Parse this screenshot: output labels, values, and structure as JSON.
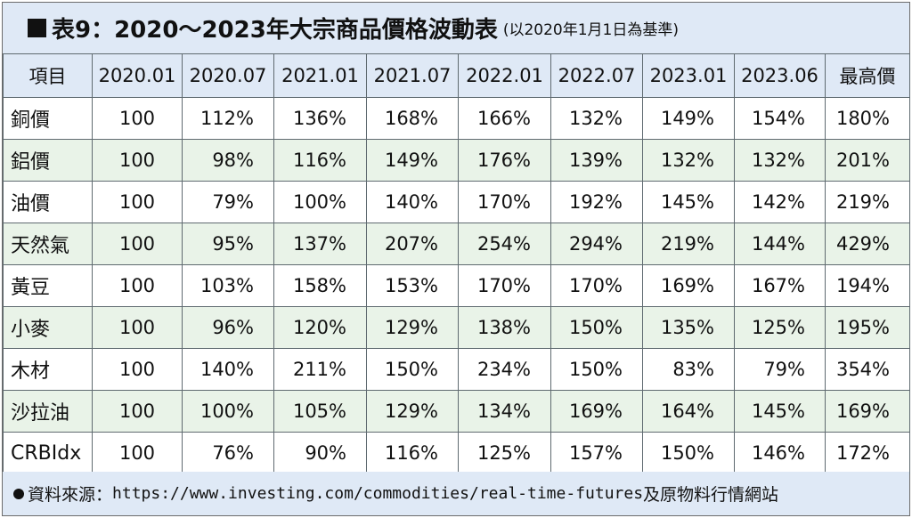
{
  "title": {
    "main": "表9：2020～2023年大宗商品價格波動表",
    "sub": "(以2020年1月1日為基準)"
  },
  "table": {
    "headers": [
      "項目",
      "2020.01",
      "2020.07",
      "2021.01",
      "2021.07",
      "2022.01",
      "2022.07",
      "2023.01",
      "2023.06",
      "最高價"
    ],
    "rows": [
      {
        "label": "銅價",
        "values": [
          "100",
          "112%",
          "136%",
          "168%",
          "166%",
          "132%",
          "149%",
          "154%",
          "180%"
        ]
      },
      {
        "label": "鋁價",
        "values": [
          "100",
          "98%",
          "116%",
          "149%",
          "176%",
          "139%",
          "132%",
          "132%",
          "201%"
        ]
      },
      {
        "label": "油價",
        "values": [
          "100",
          "79%",
          "100%",
          "140%",
          "170%",
          "192%",
          "145%",
          "142%",
          "219%"
        ]
      },
      {
        "label": "天然氣",
        "values": [
          "100",
          "95%",
          "137%",
          "207%",
          "254%",
          "294%",
          "219%",
          "144%",
          "429%"
        ]
      },
      {
        "label": "黃豆",
        "values": [
          "100",
          "103%",
          "158%",
          "153%",
          "170%",
          "170%",
          "169%",
          "167%",
          "194%"
        ]
      },
      {
        "label": "小麥",
        "values": [
          "100",
          "96%",
          "120%",
          "129%",
          "138%",
          "150%",
          "135%",
          "125%",
          "195%"
        ]
      },
      {
        "label": "木材",
        "values": [
          "100",
          "140%",
          "211%",
          "150%",
          "234%",
          "150%",
          "83%",
          "79%",
          "354%"
        ]
      },
      {
        "label": "沙拉油",
        "values": [
          "100",
          "100%",
          "105%",
          "129%",
          "134%",
          "169%",
          "164%",
          "145%",
          "169%"
        ]
      },
      {
        "label": "CRBIdx",
        "values": [
          "100",
          "76%",
          "90%",
          "116%",
          "125%",
          "157%",
          "150%",
          "146%",
          "172%"
        ]
      }
    ]
  },
  "footer": {
    "prefix": "資料來源：",
    "url": "https://www.investing.com/commodities/real-time-futures",
    "suffix": "及原物料行情網站"
  },
  "colors": {
    "header_bg": "#dfe9f6",
    "alt_row_bg": "#e9f3e8",
    "border": "#5f6a70"
  }
}
